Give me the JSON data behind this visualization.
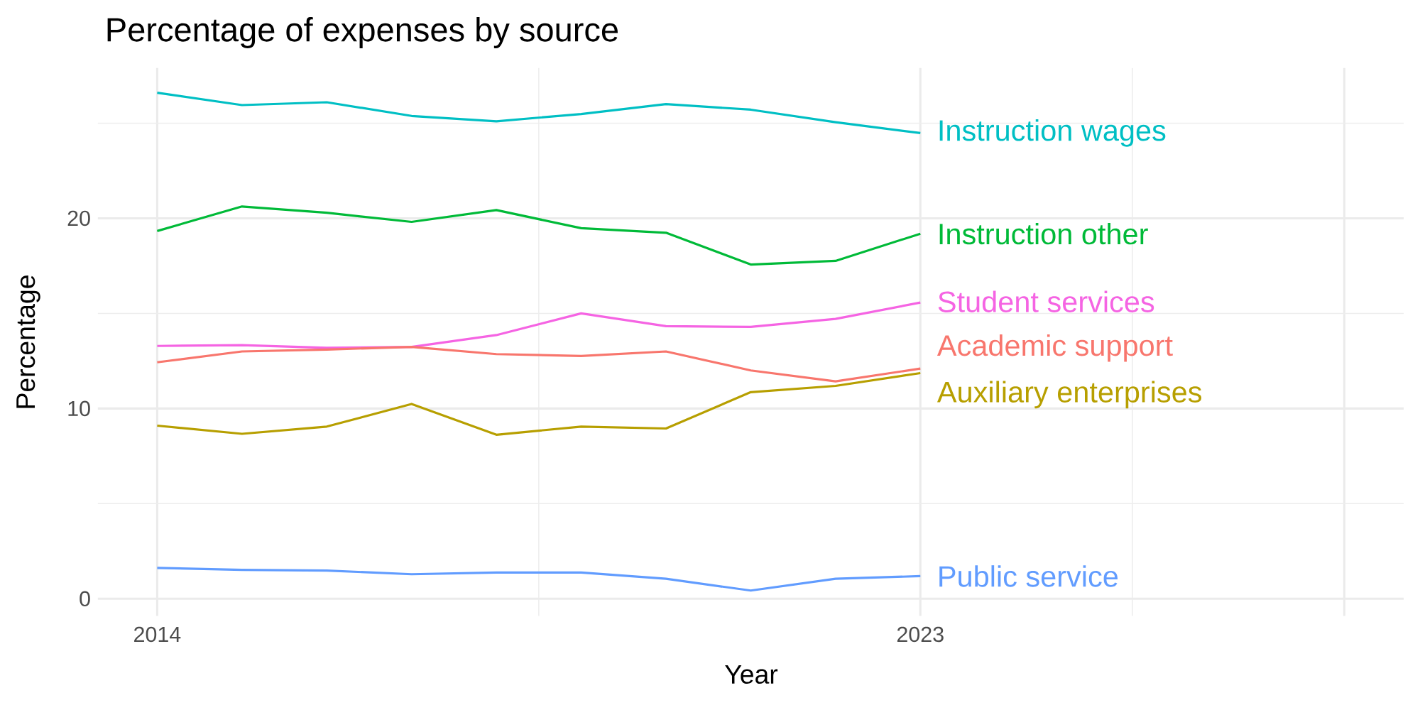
{
  "chart_data": {
    "type": "line",
    "title": "Percentage of expenses by source",
    "xlabel": "Year",
    "ylabel": "Percentage",
    "x": [
      2014,
      2015,
      2016,
      2017,
      2018,
      2019,
      2020,
      2021,
      2022,
      2023
    ],
    "series": [
      {
        "name": "Instruction wages",
        "color": "#00bfc4",
        "values": [
          26.6,
          25.95,
          26.1,
          25.38,
          25.1,
          25.48,
          26.0,
          25.71,
          25.05,
          24.48
        ]
      },
      {
        "name": "Instruction other",
        "color": "#00ba38",
        "values": [
          19.33,
          20.62,
          20.29,
          19.81,
          20.43,
          19.48,
          19.24,
          17.57,
          17.76,
          19.19
        ]
      },
      {
        "name": "Student services",
        "color": "#f564e3",
        "values": [
          13.29,
          13.33,
          13.19,
          13.24,
          13.86,
          15.0,
          14.33,
          14.29,
          14.71,
          15.57
        ]
      },
      {
        "name": "Academic support",
        "color": "#f8766d",
        "values": [
          12.43,
          13.0,
          13.1,
          13.24,
          12.86,
          12.76,
          13.0,
          12.0,
          11.43,
          12.1
        ]
      },
      {
        "name": "Auxiliary enterprises",
        "color": "#b79f00",
        "values": [
          9.1,
          8.67,
          9.05,
          10.24,
          8.62,
          9.05,
          8.95,
          10.86,
          11.19,
          11.86
        ]
      },
      {
        "name": "Public service",
        "color": "#619cff",
        "values": [
          1.62,
          1.52,
          1.48,
          1.29,
          1.38,
          1.38,
          1.05,
          0.43,
          1.05,
          1.19
        ]
      }
    ],
    "xlim": [
      2013.3,
      2028.7
    ],
    "xticks": [
      2014,
      2023,
      {
        "value": 2028,
        "label": null
      }
    ],
    "ylim": [
      -0.9,
      27.9
    ],
    "yticks": [
      0,
      10,
      20
    ],
    "grid": true
  }
}
